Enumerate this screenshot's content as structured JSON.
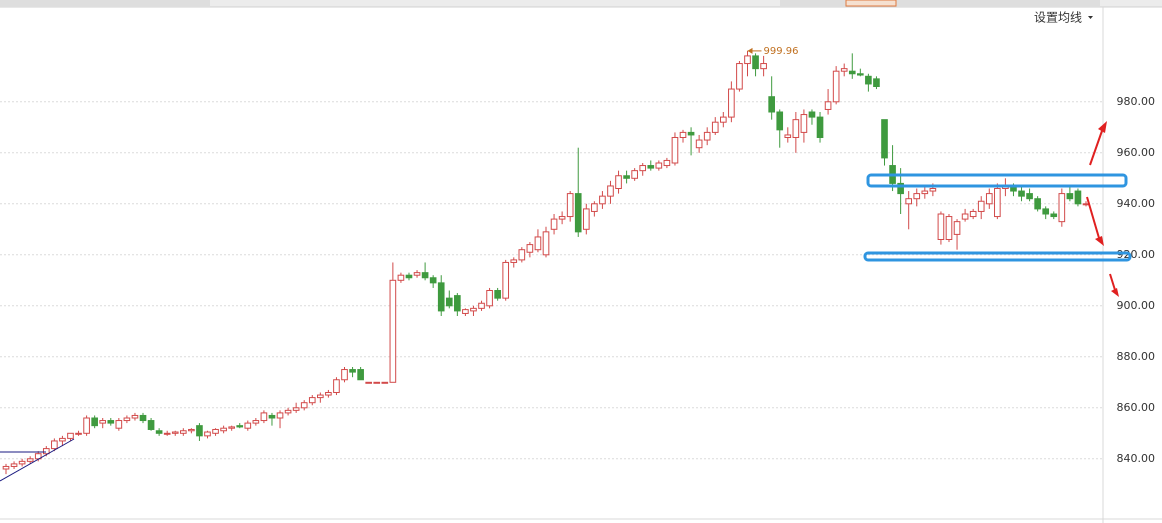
{
  "chart_data": {
    "type": "candlestick",
    "menu_label": "设置均线",
    "max_label": 999.96,
    "up_color": "#d24a4a",
    "down_color": "#3f9a3f",
    "ylim": [
      816,
      1016
    ],
    "yticks": [
      {
        "value": 840,
        "label": "840.00"
      },
      {
        "value": 860,
        "label": "860.00"
      },
      {
        "value": 880,
        "label": "880.00"
      },
      {
        "value": 900,
        "label": "900.00"
      },
      {
        "value": 920,
        "label": "920.00"
      },
      {
        "value": 940,
        "label": "940.00"
      },
      {
        "value": 960,
        "label": "960.00"
      },
      {
        "value": 980,
        "label": "980.00"
      }
    ],
    "grid": true,
    "open": [
      836,
      837,
      838,
      839,
      840,
      842,
      844,
      847,
      848,
      850,
      850,
      856,
      854,
      855,
      852,
      855,
      856,
      857,
      855,
      851,
      850,
      850,
      850,
      851,
      853,
      849,
      850,
      851,
      852,
      853,
      852,
      854,
      855,
      857,
      856,
      858,
      859,
      860,
      862,
      864,
      865,
      866,
      871,
      875,
      875,
      870,
      870,
      870,
      870,
      910,
      912,
      912,
      913,
      911,
      909,
      903,
      904,
      897,
      898,
      899,
      900,
      906,
      903,
      917,
      918,
      921,
      922,
      920,
      930,
      934,
      935,
      944,
      930,
      937,
      940,
      943,
      946,
      951,
      950,
      953,
      955,
      954,
      955,
      956,
      966,
      968,
      962,
      965,
      968,
      972,
      974,
      985,
      995,
      998,
      993,
      982,
      976,
      966,
      966,
      968,
      976,
      974,
      977,
      980,
      992,
      992,
      991,
      990,
      989,
      973,
      955,
      948,
      940,
      942,
      944,
      945,
      926,
      926,
      928,
      934,
      935,
      937,
      940,
      935,
      946,
      947,
      945,
      944,
      942,
      938,
      936,
      933,
      944,
      945,
      940
    ],
    "high": [
      838,
      839,
      840,
      841,
      843,
      845,
      848,
      849,
      850,
      851,
      857,
      857,
      856,
      856,
      856,
      857,
      858,
      858,
      856,
      852,
      851,
      851,
      852,
      852,
      854,
      851,
      852,
      853,
      853,
      854,
      855,
      856,
      859,
      858,
      859,
      860,
      862,
      863,
      865,
      866,
      867,
      872,
      876,
      876,
      876,
      870,
      870,
      870,
      917,
      913,
      913,
      914,
      917,
      912,
      912,
      906,
      905,
      899,
      900,
      902,
      907,
      907,
      918,
      919,
      923,
      925,
      930,
      931,
      936,
      937,
      945,
      962,
      940,
      941,
      945,
      949,
      953,
      953,
      954,
      956,
      957,
      957,
      958,
      968,
      969,
      970,
      967,
      970,
      974,
      976,
      988,
      996,
      999.96,
      999,
      998,
      990,
      977,
      970,
      976,
      977,
      977,
      976,
      985,
      994,
      995,
      999,
      993,
      991,
      990,
      973,
      963,
      954,
      945,
      946,
      947,
      948,
      937,
      936,
      934,
      938,
      938,
      943,
      946,
      948,
      950,
      948,
      947,
      946,
      943,
      939,
      937,
      946,
      947,
      946,
      941
    ],
    "low": [
      834,
      836,
      837,
      838,
      839,
      841,
      843,
      845,
      847,
      849,
      849,
      852,
      852,
      853,
      851,
      854,
      855,
      854,
      851,
      849,
      849,
      849,
      849,
      850,
      847,
      848,
      849,
      850,
      851,
      852,
      851,
      853,
      854,
      853,
      852,
      857,
      858,
      859,
      861,
      862,
      864,
      865,
      870,
      872,
      871,
      870,
      870,
      870,
      870,
      909,
      910,
      911,
      910,
      907,
      896,
      899,
      896,
      896,
      896,
      898,
      899,
      902,
      902,
      915,
      917,
      919,
      921,
      919,
      928,
      932,
      933,
      927,
      928,
      935,
      938,
      940,
      944,
      948,
      949,
      951,
      953,
      953,
      954,
      955,
      964,
      959,
      960,
      963,
      967,
      970,
      972,
      984,
      990,
      990,
      990,
      973,
      962,
      964,
      960,
      964,
      971,
      964,
      975,
      979,
      990,
      989,
      990,
      984,
      985,
      955,
      945,
      936,
      930,
      939,
      942,
      943,
      924,
      925,
      922,
      933,
      934,
      934,
      938,
      934,
      943,
      943,
      941,
      941,
      937,
      934,
      934,
      931,
      941,
      939,
      939
    ],
    "close": [
      837,
      838,
      839,
      840,
      842,
      844,
      847,
      848,
      850,
      850,
      856,
      853,
      855,
      854,
      855,
      856,
      857,
      855,
      851.5,
      850,
      850,
      850.5,
      851,
      851.5,
      849,
      850.5,
      851.5,
      852,
      852.5,
      852.5,
      854,
      855,
      858,
      856,
      858,
      859,
      860,
      862,
      864,
      865,
      866,
      871,
      875,
      874,
      871,
      870,
      870,
      870,
      910,
      912,
      911,
      913,
      911,
      909,
      898,
      900,
      898,
      898.5,
      899,
      901,
      906,
      903,
      917,
      918,
      922,
      924,
      927,
      929,
      934,
      935,
      944,
      929,
      938,
      940,
      943,
      947,
      951,
      950,
      953,
      955,
      954,
      956,
      957,
      966,
      968,
      967,
      965,
      968,
      972,
      974,
      985,
      995,
      998,
      993,
      995,
      976,
      969,
      967,
      973,
      975,
      974,
      966,
      980,
      992,
      993,
      991,
      990.5,
      987,
      986,
      958,
      948,
      944,
      942,
      944,
      945,
      946,
      936,
      935,
      933,
      936,
      937,
      941,
      944,
      946,
      947,
      945,
      943,
      942,
      938,
      936,
      935,
      944,
      942,
      940,
      940
    ]
  }
}
